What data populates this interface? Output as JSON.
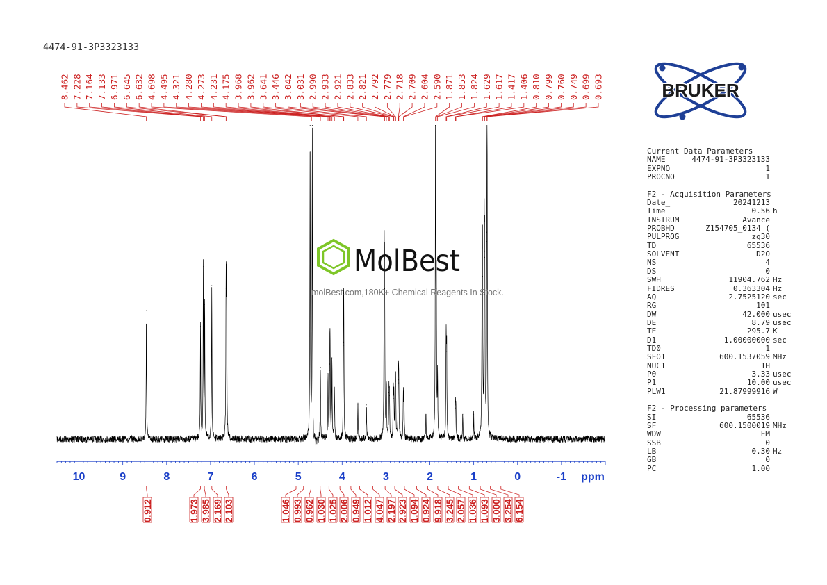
{
  "sample_name": "4474-91-3P3323133",
  "logos": {
    "bruker_text": "BRUKER",
    "molbest_text": "MolBest",
    "molbest_tagline": "molBest.com,180K+ Chemical Reagents In Stock."
  },
  "colors": {
    "spectrum_line": "#000000",
    "peak_labels": "#cc2222",
    "axis": "#1a3fc8",
    "bruker_logo": "#1e3f96",
    "molbest_green": "#7ec628"
  },
  "parameters": {
    "current": {
      "title": "Current Data Parameters",
      "rows": [
        {
          "k": "NAME",
          "v": "4474-91-3P3323133",
          "u": ""
        },
        {
          "k": "EXPNO",
          "v": "1",
          "u": ""
        },
        {
          "k": "PROCNO",
          "v": "1",
          "u": ""
        }
      ]
    },
    "acquisition": {
      "title": "F2 - Acquisition Parameters",
      "rows": [
        {
          "k": "Date_",
          "v": "20241213",
          "u": ""
        },
        {
          "k": "Time",
          "v": "0.56",
          "u": "h"
        },
        {
          "k": "INSTRUM",
          "v": "Avance",
          "u": ""
        },
        {
          "k": "PROBHD",
          "v": "Z154705_0134 (",
          "u": ""
        },
        {
          "k": "PULPROG",
          "v": "zg30",
          "u": ""
        },
        {
          "k": "TD",
          "v": "65536",
          "u": ""
        },
        {
          "k": "SOLVENT",
          "v": "D2O",
          "u": ""
        },
        {
          "k": "NS",
          "v": "4",
          "u": ""
        },
        {
          "k": "DS",
          "v": "0",
          "u": ""
        },
        {
          "k": "SWH",
          "v": "11904.762",
          "u": "Hz"
        },
        {
          "k": "FIDRES",
          "v": "0.363304",
          "u": "Hz"
        },
        {
          "k": "AQ",
          "v": "2.7525120",
          "u": "sec"
        },
        {
          "k": "RG",
          "v": "101",
          "u": ""
        },
        {
          "k": "DW",
          "v": "42.000",
          "u": "usec"
        },
        {
          "k": "DE",
          "v": "8.79",
          "u": "usec"
        },
        {
          "k": "TE",
          "v": "295.7",
          "u": "K"
        },
        {
          "k": "D1",
          "v": "1.00000000",
          "u": "sec"
        },
        {
          "k": "TD0",
          "v": "1",
          "u": ""
        },
        {
          "k": "SFO1",
          "v": "600.1537059",
          "u": "MHz"
        },
        {
          "k": "NUC1",
          "v": "1H",
          "u": ""
        },
        {
          "k": "P0",
          "v": "3.33",
          "u": "usec"
        },
        {
          "k": "P1",
          "v": "10.00",
          "u": "usec"
        },
        {
          "k": "PLW1",
          "v": "21.87999916",
          "u": "W"
        }
      ]
    },
    "processing": {
      "title": "F2 - Processing parameters",
      "rows": [
        {
          "k": "SI",
          "v": "65536",
          "u": ""
        },
        {
          "k": "SF",
          "v": "600.1500019",
          "u": "MHz"
        },
        {
          "k": "WDW",
          "v": "EM",
          "u": ""
        },
        {
          "k": "SSB",
          "v": "0",
          "u": ""
        },
        {
          "k": "LB",
          "v": "0.30",
          "u": "Hz"
        },
        {
          "k": "GB",
          "v": "0",
          "u": ""
        },
        {
          "k": "PC",
          "v": "1.00",
          "u": ""
        }
      ]
    }
  },
  "chart_data": {
    "type": "line",
    "xlabel": "ppm",
    "x_reversed": true,
    "xlim": [
      10.5,
      -2.0
    ],
    "x_ticks": [
      10,
      9,
      8,
      7,
      6,
      5,
      4,
      3,
      2,
      1,
      0,
      -1
    ],
    "x_tick_labels": [
      "10",
      "9",
      "8",
      "7",
      "6",
      "5",
      "4",
      "3",
      "2",
      "1",
      "0",
      "-1"
    ],
    "y_relative_max": 1.0,
    "peak_labels": [
      "8.462",
      "7.228",
      "7.164",
      "7.133",
      "6.971",
      "6.645",
      "6.632",
      "4.698",
      "4.495",
      "4.321",
      "4.280",
      "4.273",
      "4.231",
      "4.175",
      "3.968",
      "3.962",
      "3.641",
      "3.446",
      "3.042",
      "3.031",
      "2.990",
      "2.933",
      "2.921",
      "2.833",
      "2.821",
      "2.792",
      "2.779",
      "2.718",
      "2.709",
      "2.604",
      "2.590",
      "1.871",
      "1.853",
      "1.824",
      "1.629",
      "1.617",
      "1.417",
      "1.406",
      "0.810",
      "0.799",
      "0.760",
      "0.749",
      "0.699",
      "0.693"
    ],
    "peaks": [
      {
        "ppm": 8.462,
        "h": 0.41
      },
      {
        "ppm": 7.228,
        "h": 0.36
      },
      {
        "ppm": 7.164,
        "h": 0.55
      },
      {
        "ppm": 7.133,
        "h": 0.43
      },
      {
        "ppm": 6.971,
        "h": 0.49
      },
      {
        "ppm": 6.645,
        "h": 0.48
      },
      {
        "ppm": 6.632,
        "h": 0.47
      },
      {
        "ppm": 4.73,
        "h": 1.0
      },
      {
        "ppm": 4.68,
        "h": 1.0
      },
      {
        "ppm": 4.495,
        "h": 0.23
      },
      {
        "ppm": 4.321,
        "h": 0.21
      },
      {
        "ppm": 4.28,
        "h": 0.24
      },
      {
        "ppm": 4.273,
        "h": 0.22
      },
      {
        "ppm": 4.231,
        "h": 0.26
      },
      {
        "ppm": 4.175,
        "h": 0.17
      },
      {
        "ppm": 3.968,
        "h": 0.31
      },
      {
        "ppm": 3.962,
        "h": 0.3
      },
      {
        "ppm": 3.641,
        "h": 0.11
      },
      {
        "ppm": 3.446,
        "h": 0.11
      },
      {
        "ppm": 3.042,
        "h": 0.57
      },
      {
        "ppm": 3.031,
        "h": 0.48
      },
      {
        "ppm": 2.99,
        "h": 0.18
      },
      {
        "ppm": 2.933,
        "h": 0.15
      },
      {
        "ppm": 2.921,
        "h": 0.14
      },
      {
        "ppm": 2.833,
        "h": 0.14
      },
      {
        "ppm": 2.821,
        "h": 0.13
      },
      {
        "ppm": 2.792,
        "h": 0.18
      },
      {
        "ppm": 2.779,
        "h": 0.17
      },
      {
        "ppm": 2.718,
        "h": 0.19
      },
      {
        "ppm": 2.709,
        "h": 0.18
      },
      {
        "ppm": 2.604,
        "h": 0.15
      },
      {
        "ppm": 2.59,
        "h": 0.13
      },
      {
        "ppm": 2.09,
        "h": 0.08
      },
      {
        "ppm": 1.871,
        "h": 1.0
      },
      {
        "ppm": 1.853,
        "h": 0.48
      },
      {
        "ppm": 1.824,
        "h": 0.2
      },
      {
        "ppm": 1.629,
        "h": 0.31
      },
      {
        "ppm": 1.617,
        "h": 0.28
      },
      {
        "ppm": 1.417,
        "h": 0.11
      },
      {
        "ppm": 1.406,
        "h": 0.1
      },
      {
        "ppm": 1.25,
        "h": 0.08
      },
      {
        "ppm": 1.0,
        "h": 0.08
      },
      {
        "ppm": 0.81,
        "h": 0.56
      },
      {
        "ppm": 0.799,
        "h": 0.52
      },
      {
        "ppm": 0.76,
        "h": 0.6
      },
      {
        "ppm": 0.749,
        "h": 0.58
      },
      {
        "ppm": 0.699,
        "h": 0.66
      },
      {
        "ppm": 0.693,
        "h": 0.63
      }
    ],
    "integrals": [
      {
        "value": "0.912",
        "ppm": 8.46
      },
      {
        "value": "1.973",
        "ppm": 7.23
      },
      {
        "value": "3.985",
        "ppm": 7.14
      },
      {
        "value": "2.169",
        "ppm": 6.97
      },
      {
        "value": "2.103",
        "ppm": 6.64
      },
      {
        "value": "1.046",
        "ppm": 5.05
      },
      {
        "value": "0.993",
        "ppm": 4.88
      },
      {
        "value": "0.962",
        "ppm": 4.71
      },
      {
        "value": "1.030",
        "ppm": 4.5
      },
      {
        "value": "1.025",
        "ppm": 4.3
      },
      {
        "value": "2.006",
        "ppm": 4.05
      },
      {
        "value": "0.949",
        "ppm": 3.8
      },
      {
        "value": "1.012",
        "ppm": 3.6
      },
      {
        "value": "4.047",
        "ppm": 3.3
      },
      {
        "value": "2.197",
        "ppm": 3.02
      },
      {
        "value": "2.923",
        "ppm": 2.8
      },
      {
        "value": "1.094",
        "ppm": 2.58
      },
      {
        "value": "0.924",
        "ppm": 2.3
      },
      {
        "value": "9.918",
        "ppm": 2.05
      },
      {
        "value": "3.245",
        "ppm": 1.82
      },
      {
        "value": "2.057",
        "ppm": 1.58
      },
      {
        "value": "1.036",
        "ppm": 1.35
      },
      {
        "value": "1.093",
        "ppm": 1.1
      },
      {
        "value": "3.000",
        "ppm": 0.85
      },
      {
        "value": "3.254",
        "ppm": 0.62
      },
      {
        "value": "6.154",
        "ppm": 0.38
      }
    ]
  }
}
